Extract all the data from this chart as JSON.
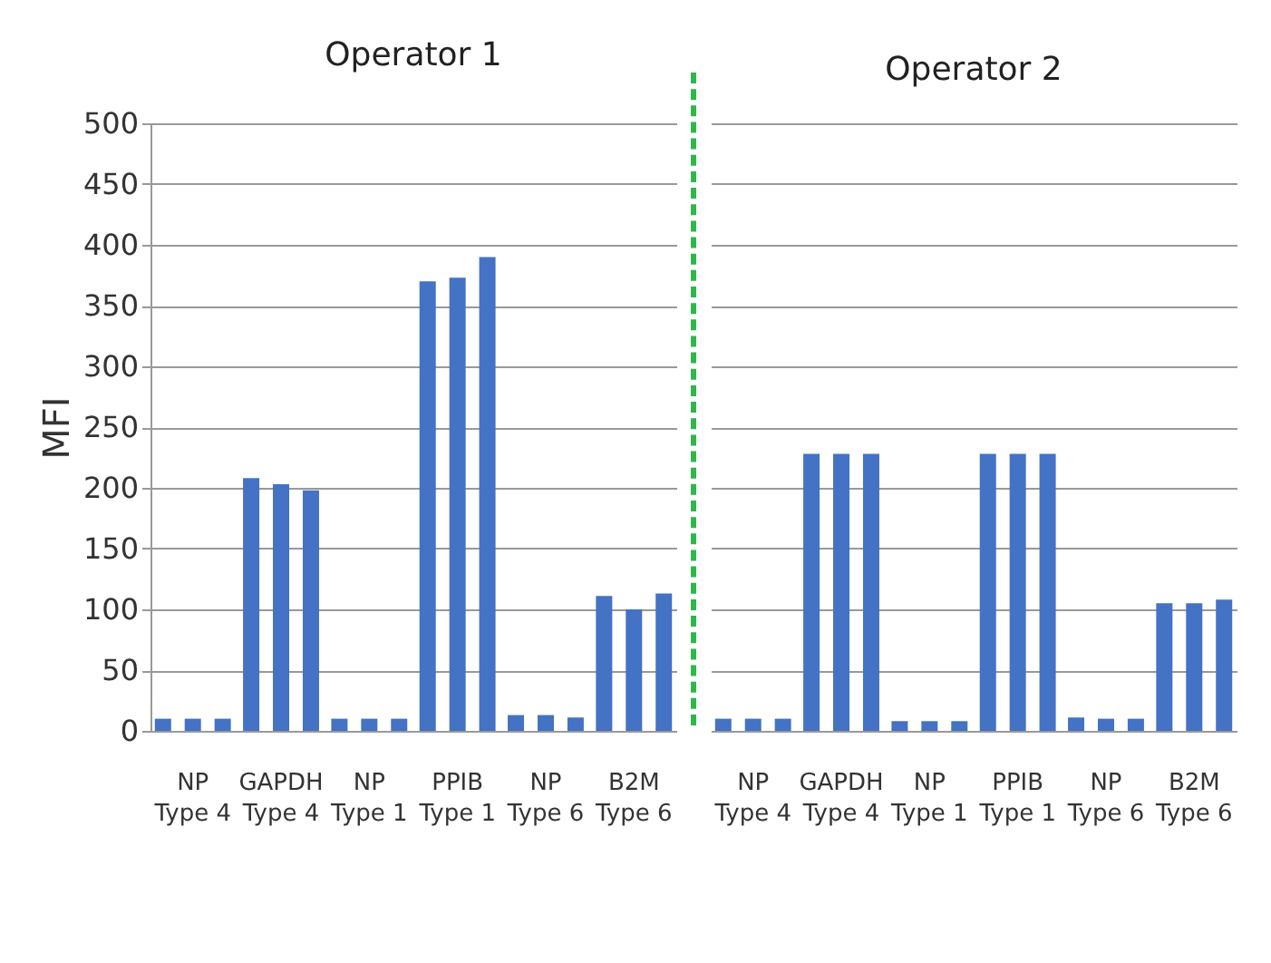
{
  "chart_data": [
    {
      "type": "bar",
      "title": "Operator 1",
      "ylabel": "MFI",
      "categories": [
        "NP\nType 4",
        "GAPDH\nType 4",
        "NP\nType 1",
        "PPIB\nType 1",
        "NP\nType 6",
        "B2M\nType 6"
      ],
      "series": [
        {
          "color": "#4472c4",
          "values": [
            10,
            208,
            10,
            370,
            13,
            111
          ]
        },
        {
          "color": "#4472c4",
          "values": [
            10,
            203,
            10,
            373,
            13,
            100
          ]
        },
        {
          "color": "#4472c4",
          "values": [
            10,
            198,
            10,
            390,
            11,
            113
          ]
        }
      ],
      "ylim": [
        0,
        500
      ],
      "yticks": [
        0,
        50,
        100,
        150,
        200,
        250,
        300,
        350,
        400,
        450,
        500
      ],
      "grid": "y",
      "legend": false
    },
    {
      "type": "bar",
      "title": "Operator 2",
      "categories": [
        "NP\nType 4",
        "GAPDH\nType 4",
        "NP\nType 1",
        "PPIB\nType 1",
        "NP\nType 6",
        "B2M\nType 6"
      ],
      "series": [
        {
          "color": "#4472c4",
          "values": [
            10,
            228,
            8,
            228,
            11,
            105
          ]
        },
        {
          "color": "#4472c4",
          "values": [
            10,
            228,
            8,
            228,
            10,
            105
          ]
        },
        {
          "color": "#4472c4",
          "values": [
            10,
            228,
            8,
            228,
            10,
            108
          ]
        }
      ],
      "ylim": [
        0,
        500
      ],
      "yticks": [
        0,
        50,
        100,
        150,
        200,
        250,
        300,
        350,
        400,
        450,
        500
      ],
      "grid": "y",
      "legend": false,
      "tick_labels": "x"
    }
  ]
}
